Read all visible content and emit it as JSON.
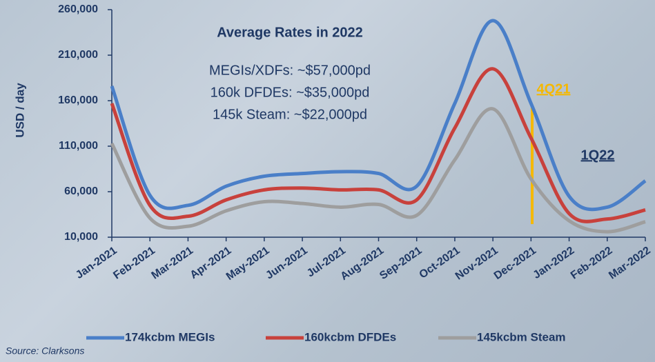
{
  "chart_data": {
    "type": "line",
    "y_label": "USD / day",
    "annotation_title": "Average Rates in 2022",
    "annotations": [
      "MEGIs/XDFs: ~$57,000pd",
      "160k DFDEs: ~$35,000pd",
      "145k Steam: ~$22,000pd"
    ],
    "period_labels": [
      "4Q21",
      "1Q22"
    ],
    "source": "Source: Clarksons",
    "categories": [
      "Jan-2021",
      "Feb-2021",
      "Mar-2021",
      "Apr-2021",
      "May-2021",
      "Jun-2021",
      "Jul-2021",
      "Aug-2021",
      "Sep-2021",
      "Oct-2021",
      "Nov-2021",
      "Dec-2021",
      "Jan-2022",
      "Feb-2022",
      "Mar-2022"
    ],
    "series": [
      {
        "name": "174kcbm MEGIs",
        "color": "#4a7fc8",
        "values": [
          176000,
          56000,
          45000,
          66000,
          77000,
          80000,
          82000,
          80000,
          66000,
          157000,
          248000,
          157000,
          55000,
          43000,
          72000
        ]
      },
      {
        "name": "160kcbm DFDEs",
        "color": "#c8413c",
        "values": [
          157000,
          45000,
          33000,
          51000,
          62000,
          64000,
          62000,
          62000,
          51000,
          130000,
          195000,
          119000,
          36000,
          30000,
          40000
        ]
      },
      {
        "name": "145kcbm Steam",
        "color": "#9e9e9e",
        "values": [
          113000,
          31000,
          22000,
          39000,
          49000,
          47000,
          43000,
          46000,
          34000,
          95000,
          151000,
          74000,
          28000,
          16000,
          27000
        ]
      }
    ],
    "ylim": [
      10000,
      260000
    ],
    "yticks": [
      {
        "value": 10000,
        "label": "10,000"
      },
      {
        "value": 60000,
        "label": "60,000"
      },
      {
        "value": 110000,
        "label": "110,000"
      },
      {
        "value": 160000,
        "label": "160,000"
      },
      {
        "value": 210000,
        "label": "210,000"
      },
      {
        "value": 260000,
        "label": "260,000"
      }
    ],
    "legend": "bottom"
  }
}
